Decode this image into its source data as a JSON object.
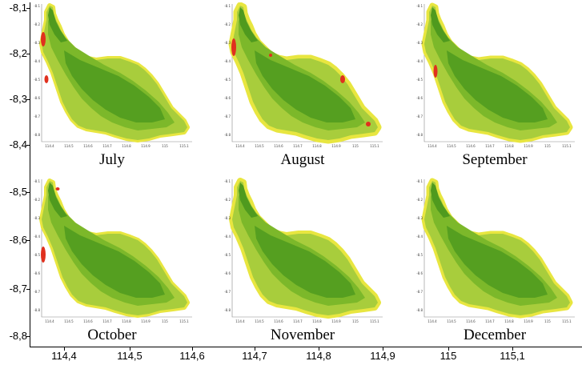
{
  "figure": {
    "y_axis": {
      "ticks": [
        "-8,1",
        "-8,2",
        "-8,3",
        "-8,4",
        "-8,5",
        "-8,6",
        "-8,7",
        "-8,8"
      ]
    },
    "x_axis": {
      "ticks": [
        "114,4",
        "114,5",
        "114,6",
        "114,7",
        "114,8",
        "114,9",
        "115",
        "115,1"
      ]
    },
    "colors": {
      "dark_green": "#4f9a1e",
      "mid_green": "#7cb82a",
      "light_green": "#a8cd3c",
      "yellow": "#e8e640",
      "red": "#e0301e"
    },
    "panels": [
      {
        "month": "July"
      },
      {
        "month": "August"
      },
      {
        "month": "September"
      },
      {
        "month": "October"
      },
      {
        "month": "November"
      },
      {
        "month": "December"
      }
    ],
    "mini_axis": {
      "y_ticks": [
        "-8.1",
        "-8.2",
        "-8.3",
        "-8.4",
        "-8.5",
        "-8.6",
        "-8.7",
        "-8.8"
      ],
      "x_ticks": [
        "114.4",
        "114.5",
        "114.6",
        "114.7",
        "114.8",
        "114.9",
        "115",
        "115.1"
      ]
    }
  }
}
